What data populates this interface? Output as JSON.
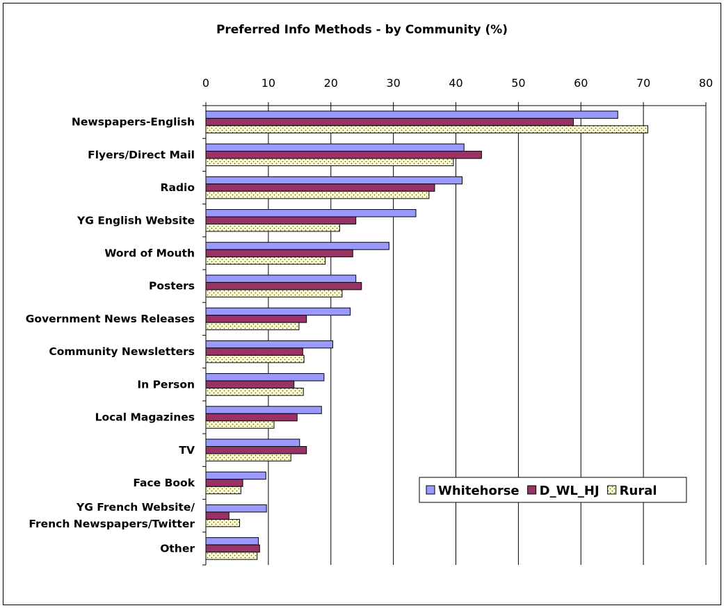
{
  "chart_data": {
    "type": "bar",
    "orientation": "horizontal",
    "title": "Preferred Info Methods - by Community (%)",
    "xlabel": "",
    "ylabel": "",
    "xlim": [
      0,
      80
    ],
    "xticks": [
      0,
      10,
      20,
      30,
      40,
      50,
      60,
      70,
      80
    ],
    "grid": true,
    "legend_position": "lower-right",
    "categories": [
      [
        "Newspapers-English"
      ],
      [
        "Flyers/Direct Mail"
      ],
      [
        "Radio"
      ],
      [
        "YG English Website"
      ],
      [
        "Word of Mouth"
      ],
      [
        "Posters"
      ],
      [
        "Government News Releases"
      ],
      [
        "Community Newsletters"
      ],
      [
        "In Person"
      ],
      [
        "Local Magazines"
      ],
      [
        "TV"
      ],
      [
        "Face Book"
      ],
      [
        "YG French Website/",
        "French Newspapers/Twitter"
      ],
      [
        "Other"
      ]
    ],
    "series": [
      {
        "name": "Whitehorse",
        "color": "#9999ff",
        "pattern": "solid",
        "values": [
          65.9,
          41.3,
          41.0,
          33.6,
          29.3,
          24.0,
          23.1,
          20.3,
          18.9,
          18.5,
          15.0,
          9.6,
          9.7,
          8.4
        ]
      },
      {
        "name": "D_WL_HJ",
        "color": "#993366",
        "pattern": "solid",
        "values": [
          58.8,
          44.1,
          36.6,
          24.0,
          23.5,
          24.9,
          16.1,
          15.5,
          14.1,
          14.6,
          16.1,
          5.9,
          3.7,
          8.6
        ]
      },
      {
        "name": "Rural",
        "color": "#ffffcc",
        "pattern": "dotted",
        "values": [
          70.7,
          39.6,
          35.7,
          21.4,
          19.1,
          21.8,
          14.9,
          15.7,
          15.6,
          10.9,
          13.6,
          5.6,
          5.4,
          8.2
        ]
      }
    ]
  }
}
